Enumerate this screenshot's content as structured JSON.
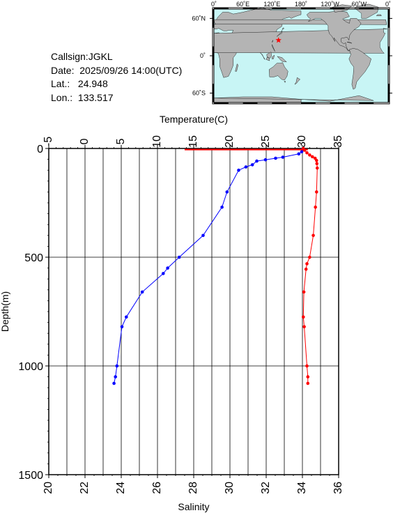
{
  "station": {
    "callsign": "Callsign:JGKL",
    "date_label": "Date:",
    "date": "2025/09/26 14:00(UTC)",
    "lat_label": "Lat.:",
    "lat": "24.948",
    "lon_label": "Lon.:",
    "lon": "133.517"
  },
  "map": {
    "lon_labels": [
      "0˚",
      "60˚E",
      "120˚E",
      "180˚",
      "120˚W",
      "60˚W",
      "0˚"
    ],
    "lat_labels": [
      "60˚N",
      "0˚",
      "60˚S"
    ],
    "ocean_color": "#c8f5f5",
    "land_color": "#b4b4b4",
    "marker_color": "#ff0000",
    "marker_lon": 133.517,
    "marker_lat": 24.948
  },
  "chart_data": {
    "type": "line",
    "top_axis_label": "Temperature(C)",
    "bottom_axis_label": "Salinity",
    "ylabel": "Depth(m)",
    "temperature_ticks": [
      "-5",
      "0",
      "5",
      "10",
      "15",
      "20",
      "25",
      "30",
      "35"
    ],
    "salinity_ticks": [
      "20",
      "22",
      "24",
      "26",
      "28",
      "30",
      "32",
      "34",
      "36"
    ],
    "depth_ticks": [
      "0",
      "500",
      "1000",
      "1500"
    ],
    "temperature_range": [
      -5,
      35
    ],
    "salinity_range": [
      20,
      36
    ],
    "depth_range": [
      0,
      1500
    ],
    "grid": true,
    "series": [
      {
        "quantity": "temperature",
        "color": "#0000ff",
        "points": [
          [
            30.0,
            5
          ],
          [
            29.9,
            15
          ],
          [
            29.5,
            25
          ],
          [
            27.3,
            40
          ],
          [
            26.3,
            45
          ],
          [
            24.9,
            52
          ],
          [
            23.7,
            58
          ],
          [
            23.1,
            75
          ],
          [
            22.2,
            85
          ],
          [
            21.2,
            100
          ],
          [
            19.6,
            200
          ],
          [
            18.9,
            270
          ],
          [
            16.3,
            400
          ],
          [
            13.0,
            500
          ],
          [
            11.4,
            550
          ],
          [
            10.8,
            575
          ],
          [
            7.9,
            660
          ],
          [
            5.7,
            775
          ],
          [
            5.1,
            820
          ],
          [
            4.4,
            1000
          ],
          [
            4.2,
            1050
          ],
          [
            4.0,
            1080
          ]
        ]
      },
      {
        "quantity": "salinity",
        "color": "#ff0000",
        "points": [
          [
            34.05,
            0
          ],
          [
            34.12,
            8
          ],
          [
            34.25,
            20
          ],
          [
            34.4,
            30
          ],
          [
            34.55,
            38
          ],
          [
            34.7,
            45
          ],
          [
            34.78,
            55
          ],
          [
            34.8,
            70
          ],
          [
            34.82,
            90
          ],
          [
            34.78,
            200
          ],
          [
            34.72,
            270
          ],
          [
            34.6,
            400
          ],
          [
            34.4,
            500
          ],
          [
            34.25,
            530
          ],
          [
            34.2,
            555
          ],
          [
            34.08,
            660
          ],
          [
            34.05,
            775
          ],
          [
            34.1,
            820
          ],
          [
            34.25,
            1000
          ],
          [
            34.3,
            1050
          ],
          [
            34.3,
            1080
          ]
        ]
      },
      {
        "quantity": "salinity",
        "color": "#ff0000",
        "style": "surface-line",
        "points": [
          [
            27.5,
            5
          ],
          [
            34.3,
            5
          ]
        ]
      }
    ]
  }
}
